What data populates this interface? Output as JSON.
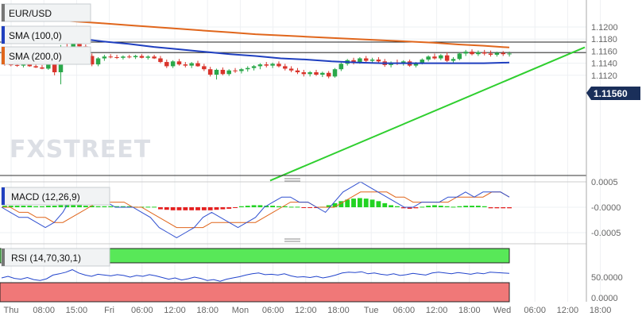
{
  "symbol": "EUR/USD",
  "watermark": "FXSTREET",
  "indicators": {
    "sma100": "SMA (100,0)",
    "sma200": "SMA (200,0)",
    "macd": "MACD (12,26,9)",
    "rsi": "RSI (14,70,30,1)"
  },
  "colors": {
    "bull": "#2aa84a",
    "bear": "#d9342b",
    "sma100": "#1f3fbf",
    "sma200": "#e0661c",
    "trendline": "#2fcf2f",
    "price_tag_bg": "#1a2f5a",
    "rsi_over": "#58e858",
    "rsi_under": "#f07878",
    "hist_pos": "#22d322",
    "hist_neg": "#e52020",
    "macd_line": "#3050d0",
    "signal_line": "#e0661c",
    "rsi_line": "#2244cc"
  },
  "chart_data": {
    "type": "candlestick",
    "price_axis": {
      "ticks": [
        "1.1200",
        "1.1180",
        "1.1160",
        "1.1140",
        "1.1120"
      ],
      "current_price": "1.11560",
      "horizontal_lines": [
        1.1175,
        1.11575
      ]
    },
    "macd_axis": {
      "ticks": [
        "0.0005",
        "-0.0000",
        "-0.0005"
      ]
    },
    "rsi_axis": {
      "ticks": [
        "50.0000",
        "0.0000"
      ]
    },
    "x_axis": {
      "ticks": [
        "Thu",
        "08:00",
        "15:00",
        "Fri",
        "06:00",
        "12:00",
        "18:00",
        "Mon",
        "06:00",
        "12:00",
        "18:00",
        "Tue",
        "06:00",
        "12:00",
        "18:00",
        "Wed",
        "06:00",
        "12:00",
        "18:00"
      ]
    },
    "candles": [
      [
        1.1139,
        1.1142,
        1.1136,
        1.1138
      ],
      [
        1.1138,
        1.1141,
        1.1135,
        1.1137
      ],
      [
        1.1137,
        1.114,
        1.1134,
        1.1136
      ],
      [
        1.1136,
        1.1139,
        1.1133,
        1.1138
      ],
      [
        1.1138,
        1.1141,
        1.1134,
        1.1135
      ],
      [
        1.1135,
        1.1139,
        1.1132,
        1.1133
      ],
      [
        1.1133,
        1.1137,
        1.113,
        1.1131
      ],
      [
        1.1131,
        1.115,
        1.1129,
        1.1147
      ],
      [
        1.1147,
        1.115,
        1.112,
        1.1125
      ],
      [
        1.1125,
        1.117,
        1.1105,
        1.1165
      ],
      [
        1.1165,
        1.1182,
        1.1145,
        1.115
      ],
      [
        1.115,
        1.119,
        1.1148,
        1.1185
      ],
      [
        1.1185,
        1.1189,
        1.1165,
        1.1168
      ],
      [
        1.1168,
        1.1171,
        1.115,
        1.1152
      ],
      [
        1.1152,
        1.1156,
        1.1135,
        1.1138
      ],
      [
        1.1138,
        1.115,
        1.1135,
        1.1148
      ],
      [
        1.1148,
        1.1154,
        1.1144,
        1.1151
      ],
      [
        1.1151,
        1.1155,
        1.1148,
        1.115
      ],
      [
        1.115,
        1.1154,
        1.1147,
        1.1149
      ],
      [
        1.1149,
        1.1153,
        1.1146,
        1.1151
      ],
      [
        1.1151,
        1.1154,
        1.1148,
        1.115
      ],
      [
        1.115,
        1.1154,
        1.1147,
        1.1152
      ],
      [
        1.1152,
        1.1155,
        1.1148,
        1.1149
      ],
      [
        1.1149,
        1.1153,
        1.1146,
        1.1151
      ],
      [
        1.1151,
        1.1154,
        1.1147,
        1.1148
      ],
      [
        1.1148,
        1.1152,
        1.114,
        1.1142
      ],
      [
        1.1142,
        1.1146,
        1.1132,
        1.1135
      ],
      [
        1.1135,
        1.1145,
        1.1132,
        1.1143
      ],
      [
        1.1143,
        1.1147,
        1.1136,
        1.1138
      ],
      [
        1.1138,
        1.1142,
        1.1133,
        1.1136
      ],
      [
        1.1136,
        1.1142,
        1.1132,
        1.114
      ],
      [
        1.114,
        1.1144,
        1.1134,
        1.1135
      ],
      [
        1.1135,
        1.1139,
        1.1127,
        1.113
      ],
      [
        1.113,
        1.1134,
        1.1118,
        1.1121
      ],
      [
        1.1121,
        1.1131,
        1.1113,
        1.1129
      ],
      [
        1.1129,
        1.1133,
        1.112,
        1.1122
      ],
      [
        1.1122,
        1.113,
        1.1119,
        1.1128
      ],
      [
        1.1128,
        1.1132,
        1.1124,
        1.1127
      ],
      [
        1.1127,
        1.1132,
        1.1123,
        1.113
      ],
      [
        1.113,
        1.1135,
        1.1126,
        1.1132
      ],
      [
        1.1132,
        1.1137,
        1.1128,
        1.1135
      ],
      [
        1.1135,
        1.114,
        1.113,
        1.1138
      ],
      [
        1.1138,
        1.1142,
        1.1133,
        1.1136
      ],
      [
        1.1136,
        1.1141,
        1.1132,
        1.1139
      ],
      [
        1.1139,
        1.1143,
        1.1133,
        1.1135
      ],
      [
        1.1135,
        1.1139,
        1.1128,
        1.1131
      ],
      [
        1.1131,
        1.1135,
        1.1125,
        1.1128
      ],
      [
        1.1128,
        1.1132,
        1.1122,
        1.1125
      ],
      [
        1.1125,
        1.1129,
        1.1118,
        1.1122
      ],
      [
        1.1122,
        1.1127,
        1.1118,
        1.1125
      ],
      [
        1.1125,
        1.1129,
        1.1119,
        1.1121
      ],
      [
        1.1121,
        1.1126,
        1.1117,
        1.1124
      ],
      [
        1.1124,
        1.1127,
        1.1115,
        1.1118
      ],
      [
        1.1118,
        1.1132,
        1.1116,
        1.113
      ],
      [
        1.113,
        1.1141,
        1.1127,
        1.1139
      ],
      [
        1.1139,
        1.1147,
        1.1136,
        1.1145
      ],
      [
        1.1145,
        1.1149,
        1.1138,
        1.1141
      ],
      [
        1.1141,
        1.115,
        1.1139,
        1.1148
      ],
      [
        1.1148,
        1.1152,
        1.1142,
        1.1144
      ],
      [
        1.1144,
        1.1149,
        1.114,
        1.1146
      ],
      [
        1.1146,
        1.115,
        1.1141,
        1.1143
      ],
      [
        1.1143,
        1.1147,
        1.1134,
        1.1137
      ],
      [
        1.1137,
        1.1143,
        1.1133,
        1.1141
      ],
      [
        1.1141,
        1.1146,
        1.1137,
        1.114
      ],
      [
        1.114,
        1.1145,
        1.1136,
        1.1143
      ],
      [
        1.1143,
        1.1146,
        1.1134,
        1.1136
      ],
      [
        1.1136,
        1.1142,
        1.1133,
        1.114
      ],
      [
        1.114,
        1.1148,
        1.1138,
        1.1146
      ],
      [
        1.1146,
        1.1153,
        1.1143,
        1.1151
      ],
      [
        1.1151,
        1.1156,
        1.1146,
        1.1148
      ],
      [
        1.1148,
        1.1155,
        1.1145,
        1.1153
      ],
      [
        1.1153,
        1.1158,
        1.1142,
        1.1144
      ],
      [
        1.1144,
        1.115,
        1.1141,
        1.1147
      ],
      [
        1.1147,
        1.1158,
        1.1145,
        1.1156
      ],
      [
        1.1156,
        1.1162,
        1.1152,
        1.1159
      ],
      [
        1.1159,
        1.1163,
        1.1153,
        1.1155
      ],
      [
        1.1155,
        1.1161,
        1.1152,
        1.1158
      ],
      [
        1.1158,
        1.1162,
        1.1153,
        1.1156
      ],
      [
        1.1156,
        1.1161,
        1.1151,
        1.1154
      ],
      [
        1.1154,
        1.1159,
        1.1151,
        1.1157
      ],
      [
        1.1157,
        1.116,
        1.1152,
        1.1155
      ],
      [
        1.1155,
        1.1159,
        1.1151,
        1.1156
      ]
    ],
    "sma100": [
      1.1195,
      1.1191,
      1.1186,
      1.1181,
      1.1176,
      1.1172,
      1.1167,
      1.1163,
      1.1159,
      1.1155,
      1.1152,
      1.1148,
      1.1146,
      1.1143,
      1.1141,
      1.114,
      1.114,
      1.114,
      1.114,
      1.114,
      1.1141
    ],
    "sma200": [
      1.1218,
      1.1215,
      1.1212,
      1.1209,
      1.1206,
      1.1203,
      1.12,
      1.1197,
      1.1194,
      1.1191,
      1.1188,
      1.1186,
      1.1184,
      1.1182,
      1.118,
      1.1178,
      1.1176,
      1.1174,
      1.1171,
      1.1169,
      1.1166
    ],
    "trendline": [
      [
        1.111,
        1.1165
      ]
    ],
    "macd_hist": [
      3e-05,
      3e-05,
      3e-05,
      3e-05,
      3e-05,
      2e-05,
      2e-05,
      3e-05,
      3e-05,
      4e-05,
      4e-05,
      4e-05,
      4e-05,
      3e-05,
      3e-05,
      2e-05,
      2e-05,
      2e-05,
      2e-05,
      2e-05,
      2e-05,
      1e-05,
      1e-05,
      1e-05,
      1e-05,
      -4e-05,
      -5e-05,
      -6e-05,
      -6e-05,
      -6e-05,
      -6e-05,
      -6e-05,
      -6e-05,
      -6e-05,
      -5e-05,
      -4e-05,
      -3e-05,
      -1e-05,
      2e-05,
      3e-05,
      4e-05,
      4e-05,
      3e-05,
      3e-05,
      2e-05,
      2e-05,
      1e-05,
      1e-05,
      -1e-05,
      -1e-05,
      -1e-05,
      1e-05,
      4e-05,
      8e-05,
      0.00012,
      0.00015,
      0.00017,
      0.00018,
      0.00017,
      0.00015,
      0.00012,
      8e-05,
      4e-05,
      2e-05,
      -2e-05,
      -3e-05,
      -2e-05,
      1e-05,
      3e-05,
      4e-05,
      3e-05,
      2e-05,
      1e-05,
      2e-05,
      3e-05,
      3e-05,
      3e-05,
      2e-05,
      -2e-05,
      -2e-05,
      -2e-05,
      -2e-05
    ],
    "macd_line": [
      0.0,
      -0.0001,
      -0.0002,
      -0.0002,
      -0.0003,
      -0.0004,
      -0.0003,
      -0.0001,
      0.0002,
      0.0003,
      0.0003,
      0.0002,
      0.0001,
      0.0,
      0.0,
      0.0,
      -0.0001,
      -0.0002,
      -0.0004,
      -0.0005,
      -0.0006,
      -0.0005,
      -0.0004,
      -0.0002,
      -0.0001,
      -0.0002,
      -0.0003,
      -0.0004,
      -0.0003,
      -0.0002,
      0.0,
      0.0001,
      0.0002,
      0.0002,
      0.0001,
      0.0001,
      0.0,
      -0.0001,
      0.0001,
      0.0003,
      0.0004,
      0.0005,
      0.0004,
      0.0003,
      0.0002,
      0.0001,
      0.0,
      0.0,
      0.0001,
      0.0001,
      0.0001,
      0.0002,
      0.0002,
      0.0003,
      0.0002,
      0.0003,
      0.0003,
      0.0003,
      0.0002
    ],
    "signal_line": [
      0.0,
      0.0,
      -0.0001,
      -0.0001,
      -0.0002,
      -0.0002,
      -0.0003,
      -0.0003,
      -0.0002,
      -0.0001,
      0.0,
      0.0001,
      0.0001,
      0.0001,
      0.0001,
      0.0,
      0.0,
      -0.0001,
      -0.0002,
      -0.0003,
      -0.0004,
      -0.0004,
      -0.0004,
      -0.0004,
      -0.0003,
      -0.0003,
      -0.0003,
      -0.0003,
      -0.0003,
      -0.0003,
      -0.0002,
      -0.0001,
      0.0,
      0.0001,
      0.0001,
      0.0001,
      0.0,
      0.0,
      0.0,
      0.0001,
      0.0002,
      0.0003,
      0.0003,
      0.0003,
      0.0003,
      0.0002,
      0.0002,
      0.0001,
      0.0001,
      0.0001,
      0.0001,
      0.0001,
      0.0002,
      0.0002,
      0.0002,
      0.0002,
      0.0003,
      0.0003,
      0.0002
    ],
    "rsi": [
      48,
      52,
      47,
      45,
      49,
      44,
      42,
      46,
      55,
      58,
      62,
      68,
      60,
      55,
      52,
      57,
      55,
      53,
      56,
      54,
      50,
      54,
      52,
      56,
      53,
      49,
      45,
      48,
      43,
      46,
      50,
      47,
      42,
      44,
      40,
      45,
      48,
      51,
      55,
      58,
      60,
      56,
      57,
      55,
      58,
      53,
      50,
      51,
      49,
      52,
      48,
      51,
      55,
      60,
      62,
      61,
      63,
      58,
      60,
      57,
      55,
      58,
      54,
      56,
      59,
      57,
      55,
      60,
      62,
      60,
      58,
      61,
      59,
      57,
      60,
      58,
      62,
      61,
      60,
      59
    ]
  }
}
